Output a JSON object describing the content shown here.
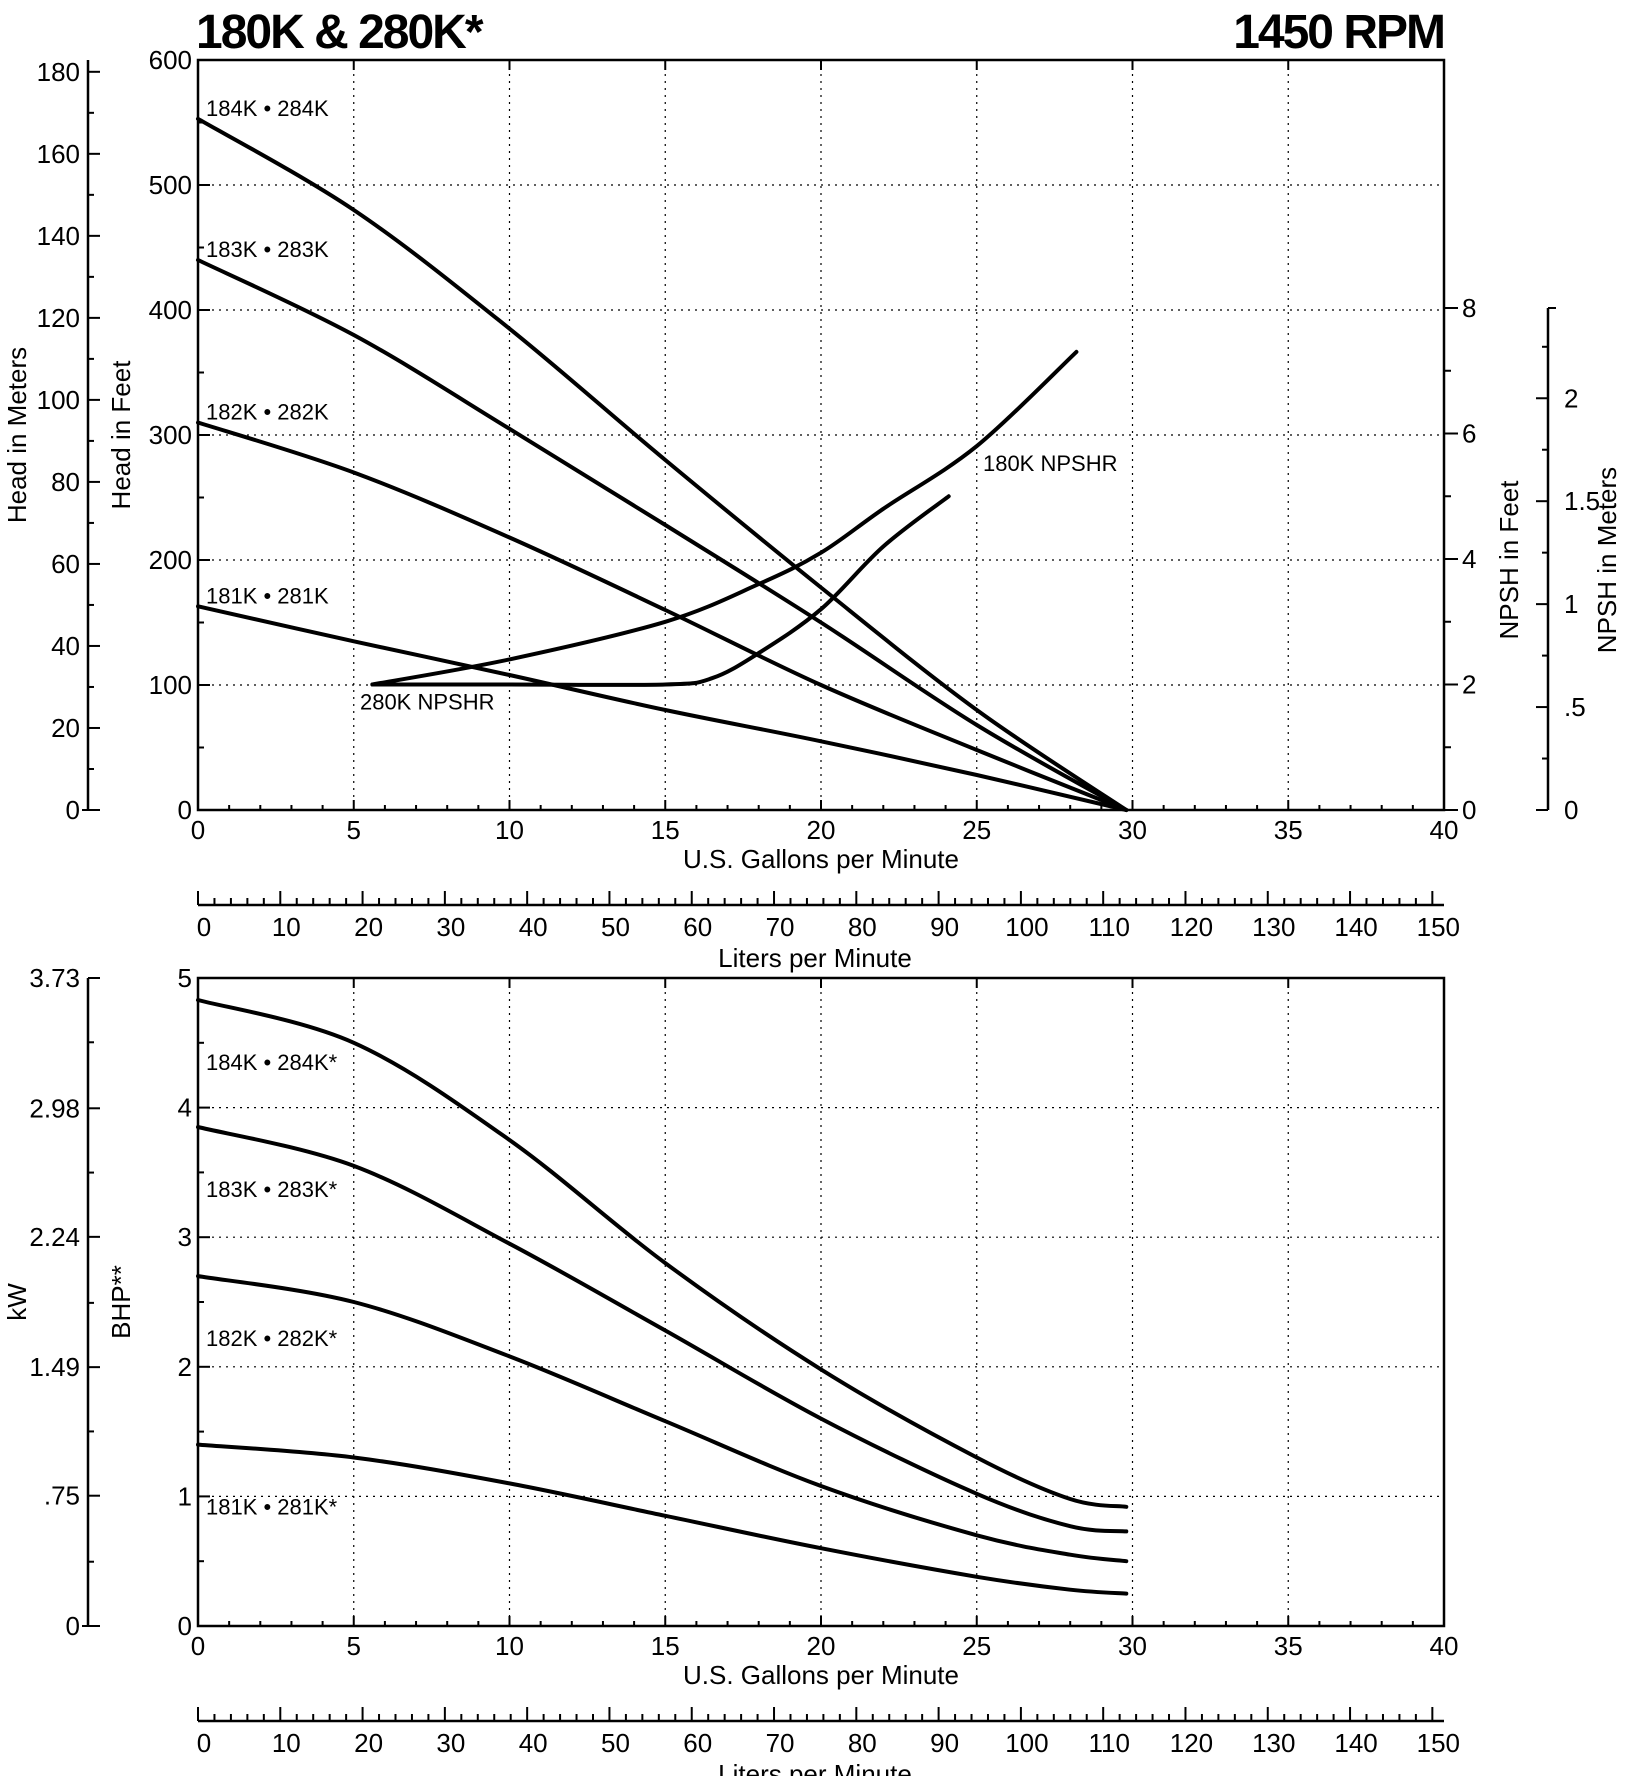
{
  "chart_data": [
    {
      "type": "line",
      "title": "180K & 280K*",
      "title_right": "1450 RPM",
      "xlabel": "U.S. Gallons per Minute",
      "x2label": "Liters per Minute",
      "ylabel": "Head in Feet",
      "ylabel_meters": "Head in Meters",
      "y2label": "NPSH in Feet",
      "y2label_meters": "NPSH in Meters",
      "xlim": [
        0,
        40
      ],
      "ylim": [
        0,
        600
      ],
      "x_ticks": [
        "0",
        "5",
        "10",
        "15",
        "20",
        "25",
        "30",
        "35",
        "40"
      ],
      "y_ticks": [
        "0",
        "100",
        "200",
        "300",
        "400",
        "500",
        "600"
      ],
      "meter_ticks": [
        "0",
        "20",
        "40",
        "60",
        "80",
        "100",
        "120",
        "140",
        "160",
        "180"
      ],
      "npsh_ft_ticks": [
        "0",
        "2",
        "4",
        "6",
        "8"
      ],
      "npsh_m_ticks": [
        "0",
        ".5",
        "1",
        "1.5",
        "2"
      ],
      "lpm_ticks": [
        "0",
        "10",
        "20",
        "30",
        "40",
        "50",
        "60",
        "70",
        "80",
        "90",
        "100",
        "110",
        "120",
        "130",
        "140",
        "150"
      ],
      "grid": true,
      "series": [
        {
          "name": "184K • 284K",
          "x": [
            0,
            5,
            10,
            15,
            20,
            25,
            29.8
          ],
          "y": [
            553,
            480,
            385,
            280,
            178,
            80,
            0
          ]
        },
        {
          "name": "183K • 283K",
          "x": [
            0,
            5,
            10,
            15,
            20,
            25,
            29.8
          ],
          "y": [
            440,
            380,
            305,
            228,
            150,
            68,
            0
          ]
        },
        {
          "name": "182K • 282K",
          "x": [
            0,
            5,
            10,
            15,
            20,
            25,
            29.8
          ],
          "y": [
            310,
            270,
            218,
            160,
            100,
            48,
            0
          ]
        },
        {
          "name": "181K • 281K",
          "x": [
            0,
            5,
            10,
            15,
            20,
            25,
            29.8
          ],
          "y": [
            163,
            135,
            108,
            80,
            55,
            28,
            0
          ]
        }
      ],
      "npsh_series": [
        {
          "name": "180K NPSHR",
          "x": [
            5.6,
            10,
            15,
            18,
            20,
            22,
            25,
            28.2
          ],
          "y_npsh_ft": [
            2.0,
            2.4,
            3.0,
            3.6,
            4.1,
            4.8,
            5.8,
            7.3
          ]
        },
        {
          "name": "280K NPSHR",
          "x": [
            5.6,
            10,
            15,
            16.5,
            18,
            20,
            22,
            24.1
          ],
          "y_npsh_ft": [
            2.0,
            2.0,
            2.0,
            2.1,
            2.5,
            3.2,
            4.2,
            5.0
          ]
        }
      ]
    },
    {
      "type": "line",
      "xlabel": "U.S. Gallons per Minute",
      "x2label": "Liters per Minute",
      "ylabel": "BHP**",
      "ylabel_kw": "kW",
      "xlim": [
        0,
        40
      ],
      "ylim": [
        0,
        5
      ],
      "x_ticks": [
        "0",
        "5",
        "10",
        "15",
        "20",
        "25",
        "30",
        "35",
        "40"
      ],
      "y_ticks": [
        "0",
        "1",
        "2",
        "3",
        "4",
        "5"
      ],
      "kw_ticks": [
        "0",
        ".75",
        "1.49",
        "2.24",
        "2.98",
        "3.73"
      ],
      "lpm_ticks": [
        "0",
        "10",
        "20",
        "30",
        "40",
        "50",
        "60",
        "70",
        "80",
        "90",
        "100",
        "110",
        "120",
        "130",
        "140",
        "150"
      ],
      "grid": true,
      "series": [
        {
          "name": "184K • 284K*",
          "x": [
            0,
            5,
            10,
            15,
            20,
            25,
            28,
            29.8
          ],
          "y": [
            4.83,
            4.5,
            3.75,
            2.8,
            1.98,
            1.3,
            0.98,
            0.92
          ]
        },
        {
          "name": "183K • 283K*",
          "x": [
            0,
            5,
            10,
            15,
            20,
            25,
            28,
            29.8
          ],
          "y": [
            3.85,
            3.55,
            2.95,
            2.28,
            1.6,
            1.02,
            0.77,
            0.73
          ]
        },
        {
          "name": "182K • 282K*",
          "x": [
            0,
            5,
            10,
            15,
            20,
            25,
            28,
            29.8
          ],
          "y": [
            2.7,
            2.5,
            2.08,
            1.58,
            1.08,
            0.7,
            0.55,
            0.5
          ]
        },
        {
          "name": "181K • 281K*",
          "x": [
            0,
            5,
            10,
            15,
            20,
            25,
            28,
            29.8
          ],
          "y": [
            1.4,
            1.3,
            1.1,
            0.85,
            0.6,
            0.38,
            0.28,
            0.25
          ]
        }
      ]
    }
  ]
}
